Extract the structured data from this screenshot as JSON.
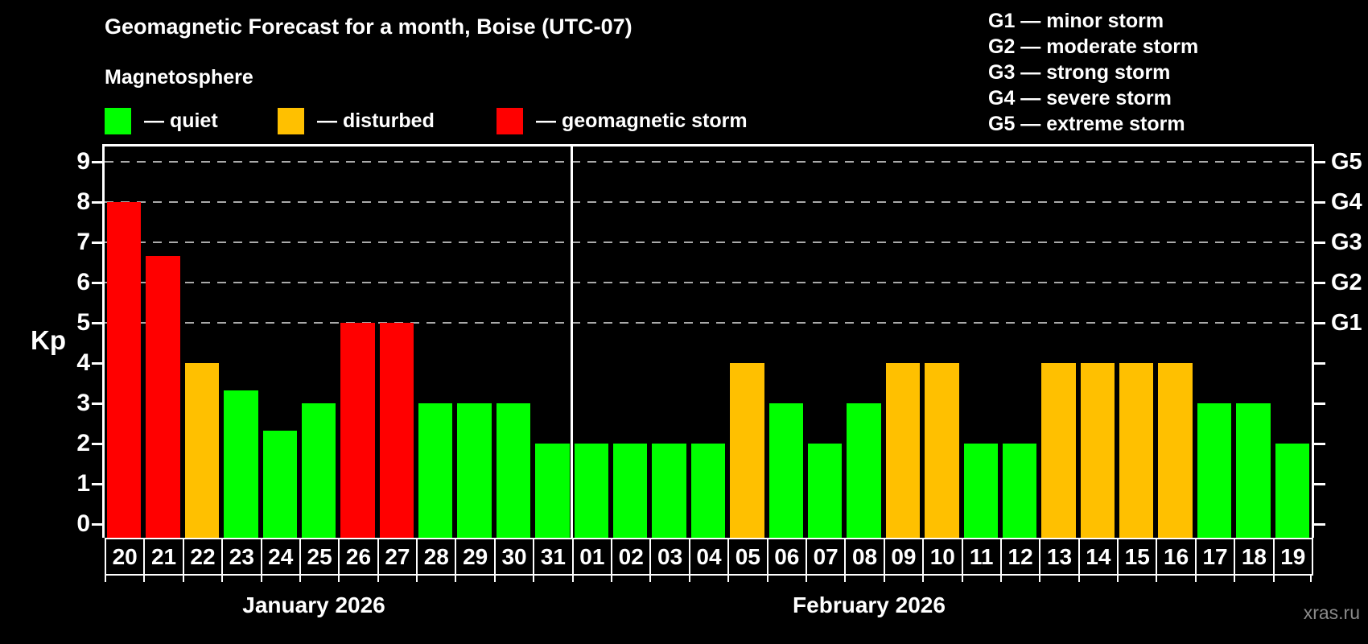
{
  "title": "Geomagnetic Forecast for a month, Boise (UTC-07)",
  "subtitle": "Magnetosphere",
  "watermark": "xras.ru",
  "y_axis": {
    "label": "Kp",
    "ticks": [
      "0",
      "1",
      "2",
      "3",
      "4",
      "5",
      "6",
      "7",
      "8",
      "9"
    ]
  },
  "right_axis": {
    "labels": [
      {
        "kp": 5,
        "label": "G1"
      },
      {
        "kp": 6,
        "label": "G2"
      },
      {
        "kp": 7,
        "label": "G3"
      },
      {
        "kp": 8,
        "label": "G4"
      },
      {
        "kp": 9,
        "label": "G5"
      }
    ]
  },
  "legend": {
    "items": [
      {
        "key": "quiet",
        "label": "— quiet",
        "color": "#00ff00"
      },
      {
        "key": "disturbed",
        "label": "— disturbed",
        "color": "#ffc000"
      },
      {
        "key": "storm",
        "label": "— geomagnetic storm",
        "color": "#ff0000"
      }
    ]
  },
  "g_legend": {
    "lines": [
      "G1 — minor storm",
      "G2 — moderate storm",
      "G3 — strong storm",
      "G4 — severe storm",
      "G5 — extreme storm"
    ]
  },
  "chart_data": {
    "type": "bar",
    "title": "Geomagnetic Forecast for a month, Boise (UTC-07)",
    "ylabel": "Kp",
    "ylim": [
      0,
      9
    ],
    "gridlines_at_kp": [
      5,
      6,
      7,
      8,
      9
    ],
    "grid": "dashed-horizontal",
    "legend_position": "top-left",
    "status_colors": {
      "quiet": "#00ff00",
      "disturbed": "#ffc000",
      "storm": "#ff0000"
    },
    "months": [
      {
        "label": "January 2026",
        "days": [
          {
            "date": "20",
            "kp": 8,
            "status": "storm"
          },
          {
            "date": "21",
            "kp": 6.67,
            "status": "storm"
          },
          {
            "date": "22",
            "kp": 4,
            "status": "disturbed"
          },
          {
            "date": "23",
            "kp": 3.33,
            "status": "quiet"
          },
          {
            "date": "24",
            "kp": 2.33,
            "status": "quiet"
          },
          {
            "date": "25",
            "kp": 3,
            "status": "quiet"
          },
          {
            "date": "26",
            "kp": 5,
            "status": "storm"
          },
          {
            "date": "27",
            "kp": 5,
            "status": "storm"
          },
          {
            "date": "28",
            "kp": 3,
            "status": "quiet"
          },
          {
            "date": "29",
            "kp": 3,
            "status": "quiet"
          },
          {
            "date": "30",
            "kp": 3,
            "status": "quiet"
          },
          {
            "date": "31",
            "kp": 2,
            "status": "quiet"
          }
        ]
      },
      {
        "label": "February 2026",
        "days": [
          {
            "date": "01",
            "kp": 2,
            "status": "quiet"
          },
          {
            "date": "02",
            "kp": 2,
            "status": "quiet"
          },
          {
            "date": "03",
            "kp": 2,
            "status": "quiet"
          },
          {
            "date": "04",
            "kp": 2,
            "status": "quiet"
          },
          {
            "date": "05",
            "kp": 4,
            "status": "disturbed"
          },
          {
            "date": "06",
            "kp": 3,
            "status": "quiet"
          },
          {
            "date": "07",
            "kp": 2,
            "status": "quiet"
          },
          {
            "date": "08",
            "kp": 3,
            "status": "quiet"
          },
          {
            "date": "09",
            "kp": 4,
            "status": "disturbed"
          },
          {
            "date": "10",
            "kp": 4,
            "status": "disturbed"
          },
          {
            "date": "11",
            "kp": 2,
            "status": "quiet"
          },
          {
            "date": "12",
            "kp": 2,
            "status": "quiet"
          },
          {
            "date": "13",
            "kp": 4,
            "status": "disturbed"
          },
          {
            "date": "14",
            "kp": 4,
            "status": "disturbed"
          },
          {
            "date": "15",
            "kp": 4,
            "status": "disturbed"
          },
          {
            "date": "16",
            "kp": 4,
            "status": "disturbed"
          },
          {
            "date": "17",
            "kp": 3,
            "status": "quiet"
          },
          {
            "date": "18",
            "kp": 3,
            "status": "quiet"
          },
          {
            "date": "19",
            "kp": 2,
            "status": "quiet"
          }
        ]
      }
    ]
  }
}
